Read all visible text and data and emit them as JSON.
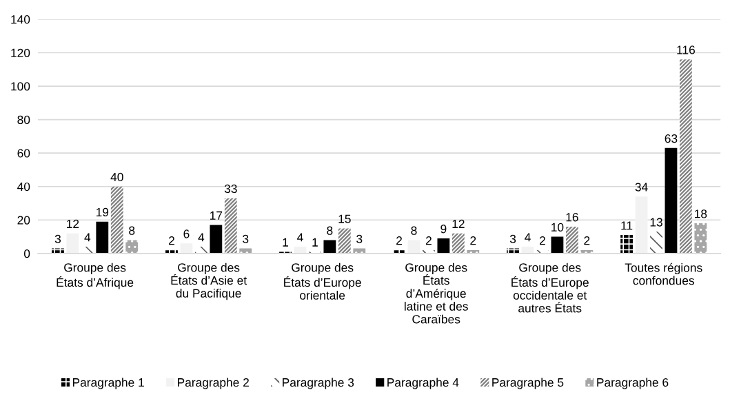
{
  "chart_data": {
    "type": "bar",
    "categories": [
      "Groupe des\nÉtats d’Afrique",
      "Groupe des\nÉtats d’Asie et\ndu Pacifique",
      "Groupe des\nÉtats d’Europe\norientale",
      "Groupe des\nÉtats\nd’Amérique\nlatine et des\nCaraïbes",
      "Groupe des\nÉtats d’Europe\noccidentale et\nautres États",
      "Toutes régions\nconfondues"
    ],
    "series": [
      {
        "name": "Paragraphe 1",
        "color": "#000000",
        "values": [
          3,
          2,
          1,
          2,
          3,
          11
        ]
      },
      {
        "name": "Paragraphe 2",
        "color": "#f2f2f2",
        "values": [
          12,
          6,
          4,
          8,
          4,
          34
        ]
      },
      {
        "name": "Paragraphe 3",
        "color": "#595959",
        "values": [
          4,
          4,
          1,
          2,
          2,
          13
        ]
      },
      {
        "name": "Paragraphe 4",
        "color": "#000000",
        "values": [
          19,
          17,
          8,
          9,
          10,
          63
        ]
      },
      {
        "name": "Paragraphe 5",
        "color": "#808080",
        "values": [
          40,
          33,
          15,
          12,
          16,
          116
        ]
      },
      {
        "name": "Paragraphe 6",
        "color": "#a6a6a6",
        "values": [
          8,
          3,
          3,
          2,
          2,
          18
        ]
      }
    ],
    "ylim": [
      0,
      140
    ],
    "yticks": [
      0,
      20,
      40,
      60,
      80,
      100,
      120,
      140
    ],
    "grid": "y",
    "legend": "bottom",
    "data_labels": true
  }
}
